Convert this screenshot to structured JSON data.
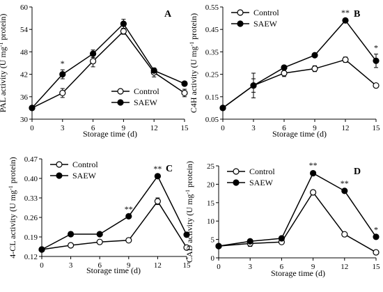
{
  "chart_data": [
    {
      "type": "line",
      "panel": "A",
      "x": [
        0,
        3,
        6,
        9,
        12,
        15
      ],
      "xticks": [
        "0",
        "3",
        "6",
        "9",
        "12",
        "15"
      ],
      "xlabel": "Storage time (d)",
      "ylabel_main": "PAL activity (U mg",
      "ylabel_sup": "-1",
      "ylabel_tail": " protein)",
      "ylim": [
        30,
        60
      ],
      "yticks": [
        "30",
        "36",
        "42",
        "48",
        "54",
        "60"
      ],
      "series": [
        {
          "name": "Control",
          "marker": "open-circle",
          "values": [
            33,
            37,
            45.5,
            53.5,
            42.5,
            37
          ],
          "errors": [
            0.5,
            1.2,
            1.5,
            0.8,
            1.2,
            1.0
          ]
        },
        {
          "name": "SAEW",
          "marker": "filled-circle",
          "values": [
            33,
            42,
            47.5,
            55.5,
            43,
            39.5
          ],
          "errors": [
            0.5,
            1.2,
            1.0,
            1.2,
            0.6,
            0.6
          ]
        }
      ],
      "significance": [
        {
          "x": 3,
          "label": "*"
        }
      ],
      "legend_position": "bottom-right"
    },
    {
      "type": "line",
      "panel": "B",
      "x": [
        0,
        3,
        6,
        9,
        12,
        15
      ],
      "xticks": [
        "0",
        "3",
        "6",
        "9",
        "12",
        "15"
      ],
      "xlabel": "Storage time (d)",
      "ylabel_main": "C4H activity (U mg",
      "ylabel_sup": "-1",
      "ylabel_tail": " protein)",
      "ylim": [
        0.05,
        0.55
      ],
      "yticks": [
        "0.05",
        "0.15",
        "0.25",
        "0.35",
        "0.45",
        "0.55"
      ],
      "series": [
        {
          "name": "Control",
          "marker": "open-circle",
          "values": [
            0.1,
            0.2,
            0.255,
            0.275,
            0.315,
            0.2
          ],
          "errors": [
            0.005,
            0.055,
            0.015,
            0.013,
            0.012,
            0.008
          ]
        },
        {
          "name": "SAEW",
          "marker": "filled-circle",
          "values": [
            0.1,
            0.2,
            0.28,
            0.335,
            0.49,
            0.31
          ],
          "errors": [
            0.005,
            0.03,
            0.008,
            0.006,
            0.007,
            0.03
          ]
        }
      ],
      "significance": [
        {
          "x": 12,
          "label": "**"
        },
        {
          "x": 15,
          "label": "*"
        }
      ],
      "legend_position": "top-left"
    },
    {
      "type": "line",
      "panel": "C",
      "x": [
        0,
        3,
        6,
        9,
        12,
        15
      ],
      "xticks": [
        "0",
        "3",
        "6",
        "9",
        "12",
        "15"
      ],
      "xlabel": "Storage time (d)",
      "ylabel_main": "4-CL activity (U mg",
      "ylabel_sup": "-1",
      "ylabel_tail": " protein)",
      "ylim": [
        0.12,
        0.47
      ],
      "yticks": [
        "0.12",
        "0.19",
        "0.26",
        "0.33",
        "0.40",
        "0.47"
      ],
      "series": [
        {
          "name": "Control",
          "marker": "open-circle",
          "values": [
            0.145,
            0.16,
            0.172,
            0.178,
            0.318,
            0.152
          ],
          "errors": [
            0.003,
            0.006,
            0.007,
            0.006,
            0.012,
            0.003
          ]
        },
        {
          "name": "SAEW",
          "marker": "filled-circle",
          "values": [
            0.145,
            0.2,
            0.2,
            0.264,
            0.408,
            0.198
          ],
          "errors": [
            0.003,
            0.008,
            0.004,
            0.004,
            0.004,
            0.003
          ]
        }
      ],
      "significance": [
        {
          "x": 9,
          "label": "**"
        },
        {
          "x": 12,
          "label": "**"
        }
      ],
      "legend_position": "top-left"
    },
    {
      "type": "line",
      "panel": "D",
      "x": [
        0,
        3,
        6,
        9,
        12,
        15
      ],
      "xticks": [
        "0",
        "3",
        "6",
        "9",
        "12",
        "15"
      ],
      "xlabel": "Storage time (d)",
      "ylabel_main": "CAD activity (U mg",
      "ylabel_sup": "-1",
      "ylabel_tail": " protein)",
      "ylim": [
        0,
        25
      ],
      "yticks": [
        "0",
        "5",
        "10",
        "15",
        "20",
        "25"
      ],
      "series": [
        {
          "name": "Control",
          "marker": "open-circle",
          "values": [
            3.2,
            3.9,
            4.3,
            17.8,
            6.4,
            1.5
          ],
          "errors": [
            0.3,
            0.8,
            0.4,
            0.4,
            0.3,
            0.2
          ]
        },
        {
          "name": "SAEW",
          "marker": "filled-circle",
          "values": [
            3.2,
            4.5,
            5.3,
            23,
            18.2,
            5.7
          ],
          "errors": [
            0.3,
            0.5,
            0.3,
            0.5,
            0.4,
            0.3
          ]
        }
      ],
      "significance": [
        {
          "x": 9,
          "label": "**"
        },
        {
          "x": 12,
          "label": "**"
        },
        {
          "x": 15,
          "label": "*"
        }
      ],
      "legend_position": "top-left"
    }
  ]
}
